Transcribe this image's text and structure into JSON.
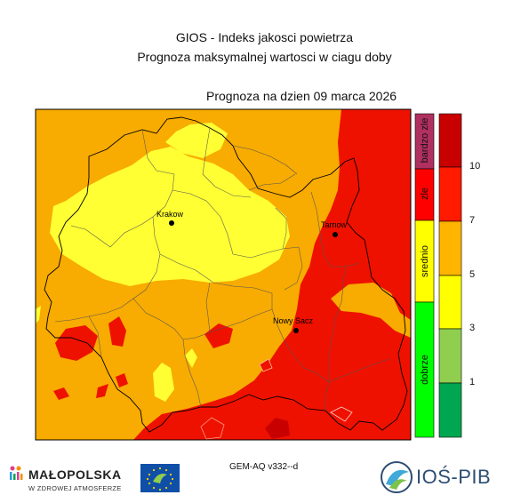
{
  "header": {
    "title_line1": "GIOS - Indeks jakosci powietrza",
    "title_line2": "Prognoza maksymalnej wartosci w ciagu doby",
    "date_label": "Prognoza na dzien  09 marca 2026"
  },
  "cities": [
    {
      "name": "Krakow"
    },
    {
      "name": "Tarnow"
    },
    {
      "name": "Nowy Sacz"
    }
  ],
  "legend": {
    "categories": [
      {
        "label": "bardzo zle",
        "color": "#b03060"
      },
      {
        "label": "zle",
        "color": "#ff0000"
      },
      {
        "label": "srednio",
        "color": "#ffff00"
      },
      {
        "label": "dobrze",
        "color": "#00ff00"
      }
    ],
    "scale_colors": [
      "#00a650",
      "#8fce4f",
      "#ffff00",
      "#ffb400",
      "#ff1a00",
      "#c80000"
    ],
    "ticks": [
      "1",
      "3",
      "5",
      "7",
      "10"
    ]
  },
  "map_colors": {
    "level_4_6": "#f8ab00",
    "level_3_4": "#ffff33",
    "level_7_10": "#ee1100"
  },
  "footer": {
    "model": "GEM-AQ v332--d",
    "logo_left_name": "MAŁOPOLSKA",
    "logo_left_tagline": "W ZDROWEJ ATMOSFERZE",
    "logo_right_name": "IOŚ-PIB"
  }
}
